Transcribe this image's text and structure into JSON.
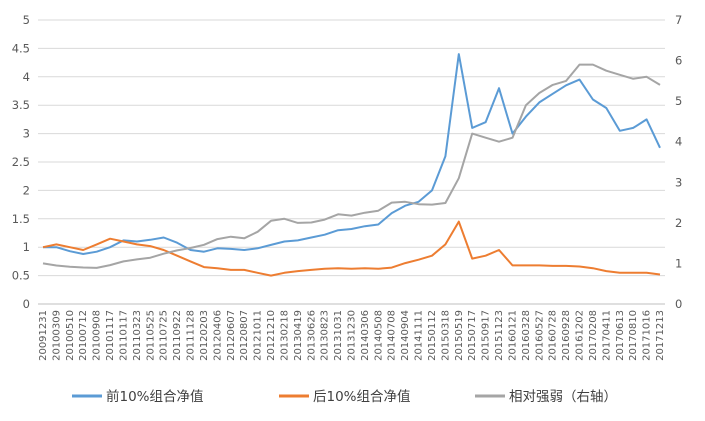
{
  "chart_data": {
    "type": "line",
    "title": "",
    "left_axis": {
      "ticks": [
        "0",
        "0.5",
        "1",
        "1.5",
        "2",
        "2.5",
        "3",
        "3.5",
        "4",
        "4.5",
        "5"
      ],
      "ylim": [
        0,
        5
      ]
    },
    "right_axis": {
      "ticks": [
        "0",
        "1",
        "2",
        "3",
        "4",
        "5",
        "6",
        "7"
      ],
      "ylim": [
        0,
        7
      ]
    },
    "x_labels": [
      "20091231",
      "20100309",
      "20100510",
      "20100712",
      "20100908",
      "20101117",
      "20110117",
      "20110323",
      "20110525",
      "20110725",
      "20110922",
      "20111128",
      "20120203",
      "20120406",
      "20120607",
      "20120807",
      "20121011",
      "20121210",
      "20130218",
      "20130419",
      "20130626",
      "20130823",
      "20131031",
      "20131230",
      "20140306",
      "20140508",
      "20140708",
      "20140904",
      "20141111",
      "20150112",
      "20150318",
      "20150519",
      "20150717",
      "20150917",
      "20151123",
      "20160121",
      "20160328",
      "20160527",
      "20160728",
      "20160928",
      "20161202",
      "20170208",
      "20170411",
      "20170613",
      "20170810",
      "20171016",
      "20171213"
    ],
    "grid": "horizontal",
    "legend_position": "bottom",
    "colors": {
      "top10": "#5b9bd5",
      "bottom10": "#ed7d31",
      "relative": "#a5a5a5",
      "grid": "#d9d9d9",
      "axis": "#bfbfbf"
    },
    "series": [
      {
        "name": "前10%组合净值",
        "axis": "left",
        "color": "#5b9bd5",
        "values": [
          1.0,
          1.0,
          0.93,
          0.88,
          0.92,
          1.0,
          1.12,
          1.1,
          1.13,
          1.17,
          1.08,
          0.95,
          0.92,
          0.98,
          0.97,
          0.95,
          0.98,
          1.04,
          1.1,
          1.12,
          1.17,
          1.22,
          1.3,
          1.32,
          1.37,
          1.4,
          1.6,
          1.73,
          1.8,
          2.0,
          2.6,
          4.4,
          3.1,
          3.2,
          3.8,
          3.0,
          3.3,
          3.55,
          3.7,
          3.85,
          3.95,
          3.6,
          3.45,
          3.05,
          3.1,
          3.25,
          2.75
        ]
      },
      {
        "name": "后10%组合净值",
        "axis": "left",
        "color": "#ed7d31",
        "values": [
          1.0,
          1.05,
          1.0,
          0.95,
          1.05,
          1.15,
          1.1,
          1.05,
          1.02,
          0.95,
          0.85,
          0.75,
          0.65,
          0.63,
          0.6,
          0.6,
          0.55,
          0.5,
          0.55,
          0.58,
          0.6,
          0.62,
          0.63,
          0.62,
          0.63,
          0.62,
          0.64,
          0.72,
          0.78,
          0.85,
          1.05,
          1.45,
          0.8,
          0.85,
          0.95,
          0.68,
          0.68,
          0.68,
          0.67,
          0.67,
          0.66,
          0.63,
          0.58,
          0.55,
          0.55,
          0.55,
          0.52
        ]
      },
      {
        "name": "相对强弱（右轴）",
        "axis": "right",
        "color": "#a5a5a5",
        "values": [
          1.0,
          0.95,
          0.92,
          0.9,
          0.89,
          0.96,
          1.05,
          1.1,
          1.14,
          1.24,
          1.32,
          1.38,
          1.46,
          1.6,
          1.66,
          1.62,
          1.78,
          2.05,
          2.1,
          2.0,
          2.01,
          2.08,
          2.21,
          2.18,
          2.25,
          2.3,
          2.5,
          2.52,
          2.46,
          2.45,
          2.49,
          3.1,
          4.2,
          4.1,
          4.0,
          4.1,
          4.9,
          5.2,
          5.4,
          5.5,
          5.9,
          5.9,
          5.75,
          5.65,
          5.55,
          5.6,
          5.4
        ]
      }
    ]
  }
}
